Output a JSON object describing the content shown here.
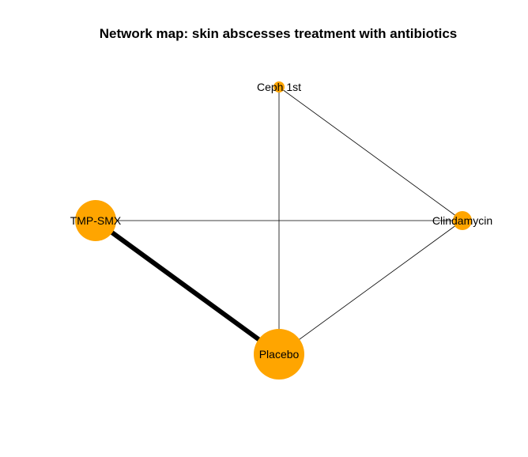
{
  "title": "Network map: skin abscesses treatment with antibiotics",
  "style": {
    "node_color": "#FFA500",
    "edge_color": "#000000",
    "background": "#FFFFFF"
  },
  "nodes": [
    {
      "id": "ceph1st",
      "label": "Ceph 1st"
    },
    {
      "id": "tmpsmx",
      "label": "TMP-SMX"
    },
    {
      "id": "clindamycin",
      "label": "Clindamycin"
    },
    {
      "id": "placebo",
      "label": "Placebo"
    }
  ],
  "edges": [
    {
      "from": "ceph1st",
      "to": "placebo"
    },
    {
      "from": "ceph1st",
      "to": "clindamycin"
    },
    {
      "from": "tmpsmx",
      "to": "clindamycin"
    },
    {
      "from": "tmpsmx",
      "to": "placebo"
    },
    {
      "from": "clindamycin",
      "to": "placebo"
    }
  ]
}
